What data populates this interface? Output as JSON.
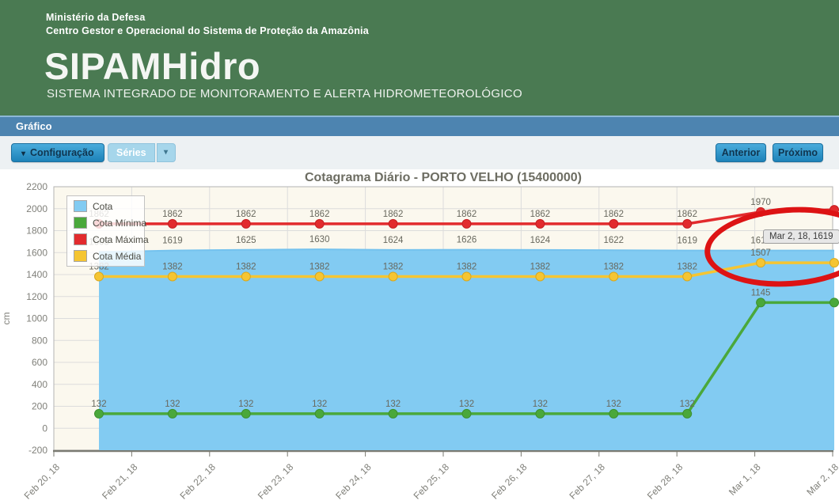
{
  "header": {
    "line1": "Ministério da Defesa",
    "line2": "Centro Gestor e Operacional do Sistema de Proteção da Amazônia",
    "app_name": "SIPAMHidro",
    "subtitle": "SISTEMA INTEGRADO DE MONITORAMENTO E ALERTA HIDROMETEOROLÓGICO"
  },
  "section_bar": {
    "title": "Gráfico"
  },
  "toolbar": {
    "configuracao_label": "Configuração",
    "series_label": "Séries",
    "anterior_label": "Anterior",
    "proximo_label": "Próximo",
    "dropdown_arrow": "▼"
  },
  "tooltip": {
    "text": "Mar 2, 18, 1619"
  },
  "colors": {
    "header_green": "#4a7a52",
    "section_bar_blue": "#4d84b0",
    "button_blue": "#1d82b8",
    "plot_background": "#fbf8ee",
    "grid_line": "#dcdcdc",
    "cota_blue": "#82cbf2",
    "cota_minima_green": "#4aa83b",
    "cota_maxima_red": "#e22b2d",
    "cota_media_yellow": "#f5c532",
    "annotation_red": "#dd1314"
  },
  "chart_data": {
    "type": "line",
    "title": "Cotagrama Diário - PORTO VELHO (15400000)",
    "xlabel": "",
    "ylabel": "cm",
    "ylim": [
      -200,
      2200
    ],
    "ytick_step": 200,
    "grid": true,
    "legend_position": "top-left",
    "categories": [
      "Feb 20, 18",
      "Feb 21, 18",
      "Feb 22, 18",
      "Feb 23, 18",
      "Feb 24, 18",
      "Feb 25, 18",
      "Feb 26, 18",
      "Feb 27, 18",
      "Feb 28, 18",
      "Mar 1, 18",
      "Mar 2, 18"
    ],
    "series": [
      {
        "name": "Cota",
        "type": "area",
        "color": "#82cbf2",
        "edge_color": "#74c2ee",
        "values": [
          1605,
          1619,
          1625,
          1630,
          1624,
          1626,
          1624,
          1622,
          1619,
          1619,
          1619
        ]
      },
      {
        "name": "Cota Mínima",
        "type": "line",
        "color": "#4aa83b",
        "edge_color": "#3c8f2f",
        "values": [
          132,
          132,
          132,
          132,
          132,
          132,
          132,
          132,
          132,
          1145,
          1145
        ]
      },
      {
        "name": "Cota Máxima",
        "type": "line",
        "color": "#e22b2d",
        "edge_color": "#c41f22",
        "values": [
          1862,
          1862,
          1862,
          1862,
          1862,
          1862,
          1862,
          1862,
          1862,
          1970,
          1990
        ]
      },
      {
        "name": "Cota Média",
        "type": "line",
        "color": "#f5c532",
        "edge_color": "#d9a81e",
        "values": [
          1382,
          1382,
          1382,
          1382,
          1382,
          1382,
          1382,
          1382,
          1382,
          1507,
          1507
        ]
      }
    ]
  }
}
